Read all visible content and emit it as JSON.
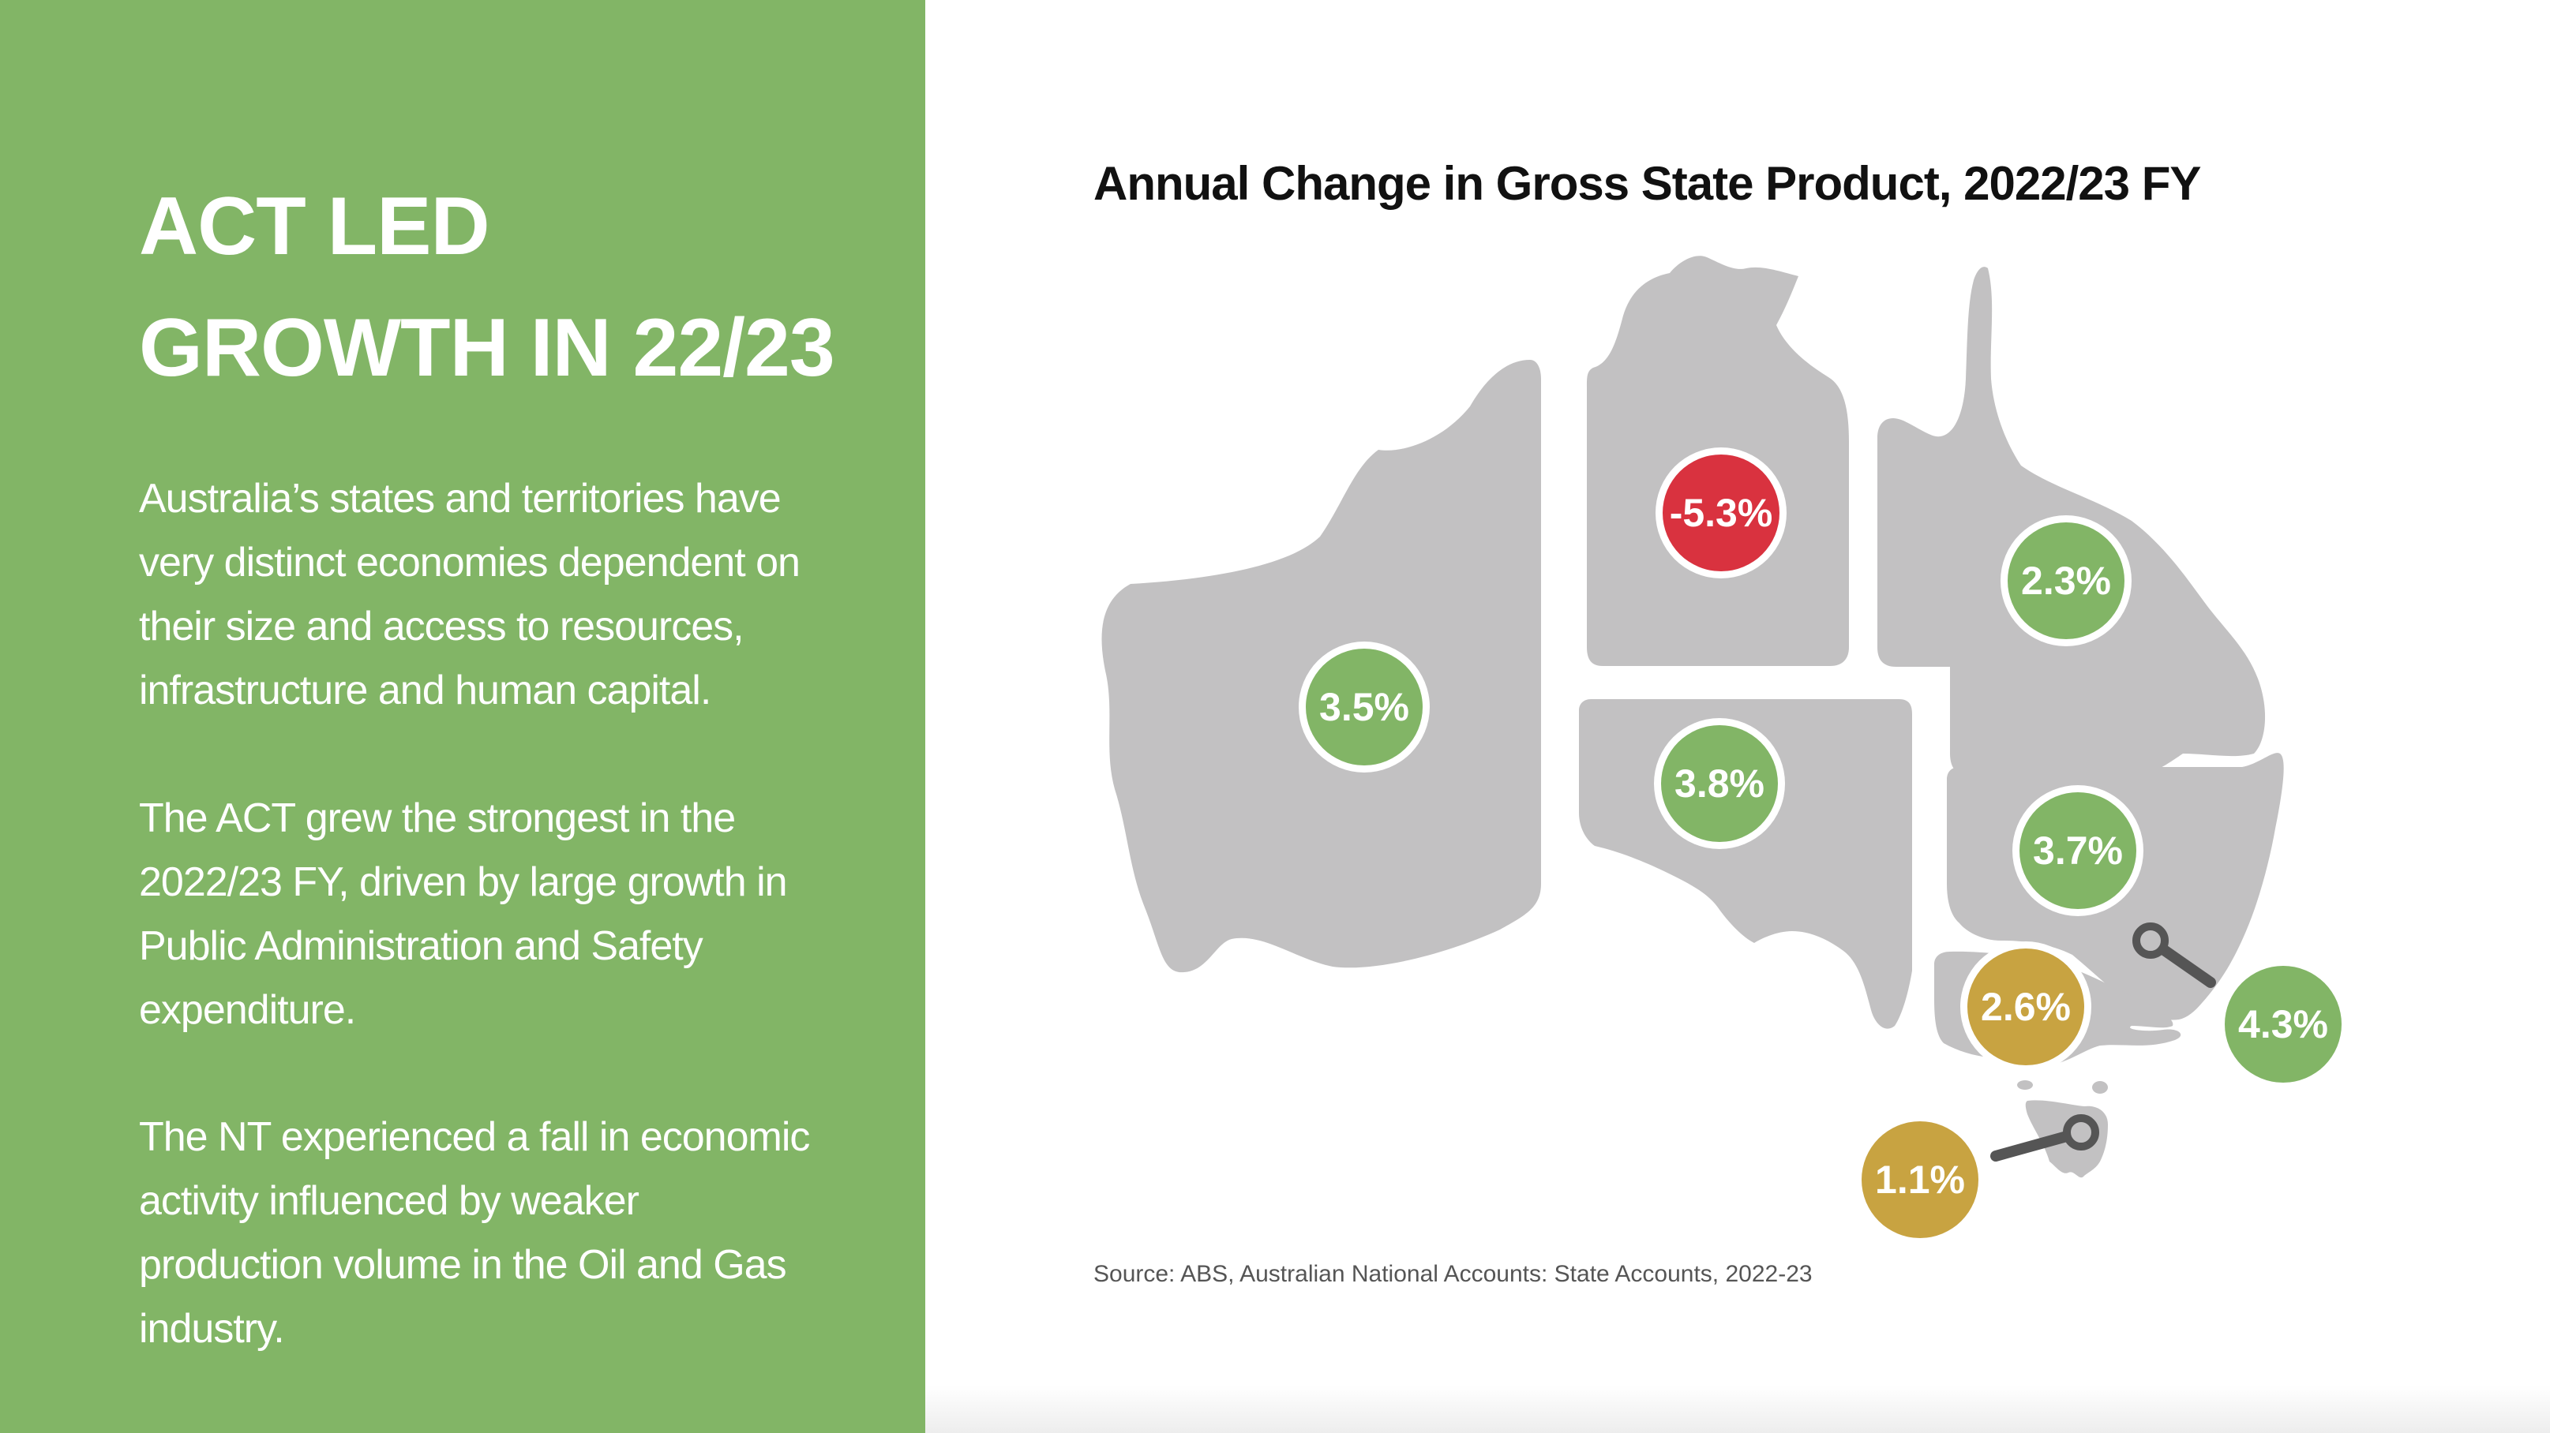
{
  "headline": {
    "line1": "ACT LED",
    "line2": "GROWTH IN 22/23"
  },
  "paragraphs": [
    "Australia’s states and territories have very distinct economies dependent on their size and access to resources, infrastructure and human capital.",
    "The ACT grew the strongest in the 2022/23 FY, driven by large growth in Public Administration and Safety expenditure.",
    "The NT experienced a fall in economic activity influenced by weaker production volume in the Oil and Gas industry."
  ],
  "map": {
    "title": "Annual Change in Gross State Product, 2022/23 FY",
    "source": "Source: ABS, Australian National Accounts: State Accounts, 2022-23",
    "colors": {
      "positive": "#82b566",
      "negative": "#d9323f",
      "moderate": "#c8a341",
      "land": "#c2c1c2",
      "leader": "#555555"
    },
    "regions": [
      {
        "id": "wa",
        "value": "3.5%",
        "color": "positive"
      },
      {
        "id": "nt",
        "value": "-5.3%",
        "color": "negative"
      },
      {
        "id": "qld",
        "value": "2.3%",
        "color": "positive"
      },
      {
        "id": "sa",
        "value": "3.8%",
        "color": "positive"
      },
      {
        "id": "nsw",
        "value": "3.7%",
        "color": "positive"
      },
      {
        "id": "vic",
        "value": "2.6%",
        "color": "moderate"
      },
      {
        "id": "act",
        "value": "4.3%",
        "color": "positive"
      },
      {
        "id": "tas",
        "value": "1.1%",
        "color": "moderate"
      }
    ]
  }
}
